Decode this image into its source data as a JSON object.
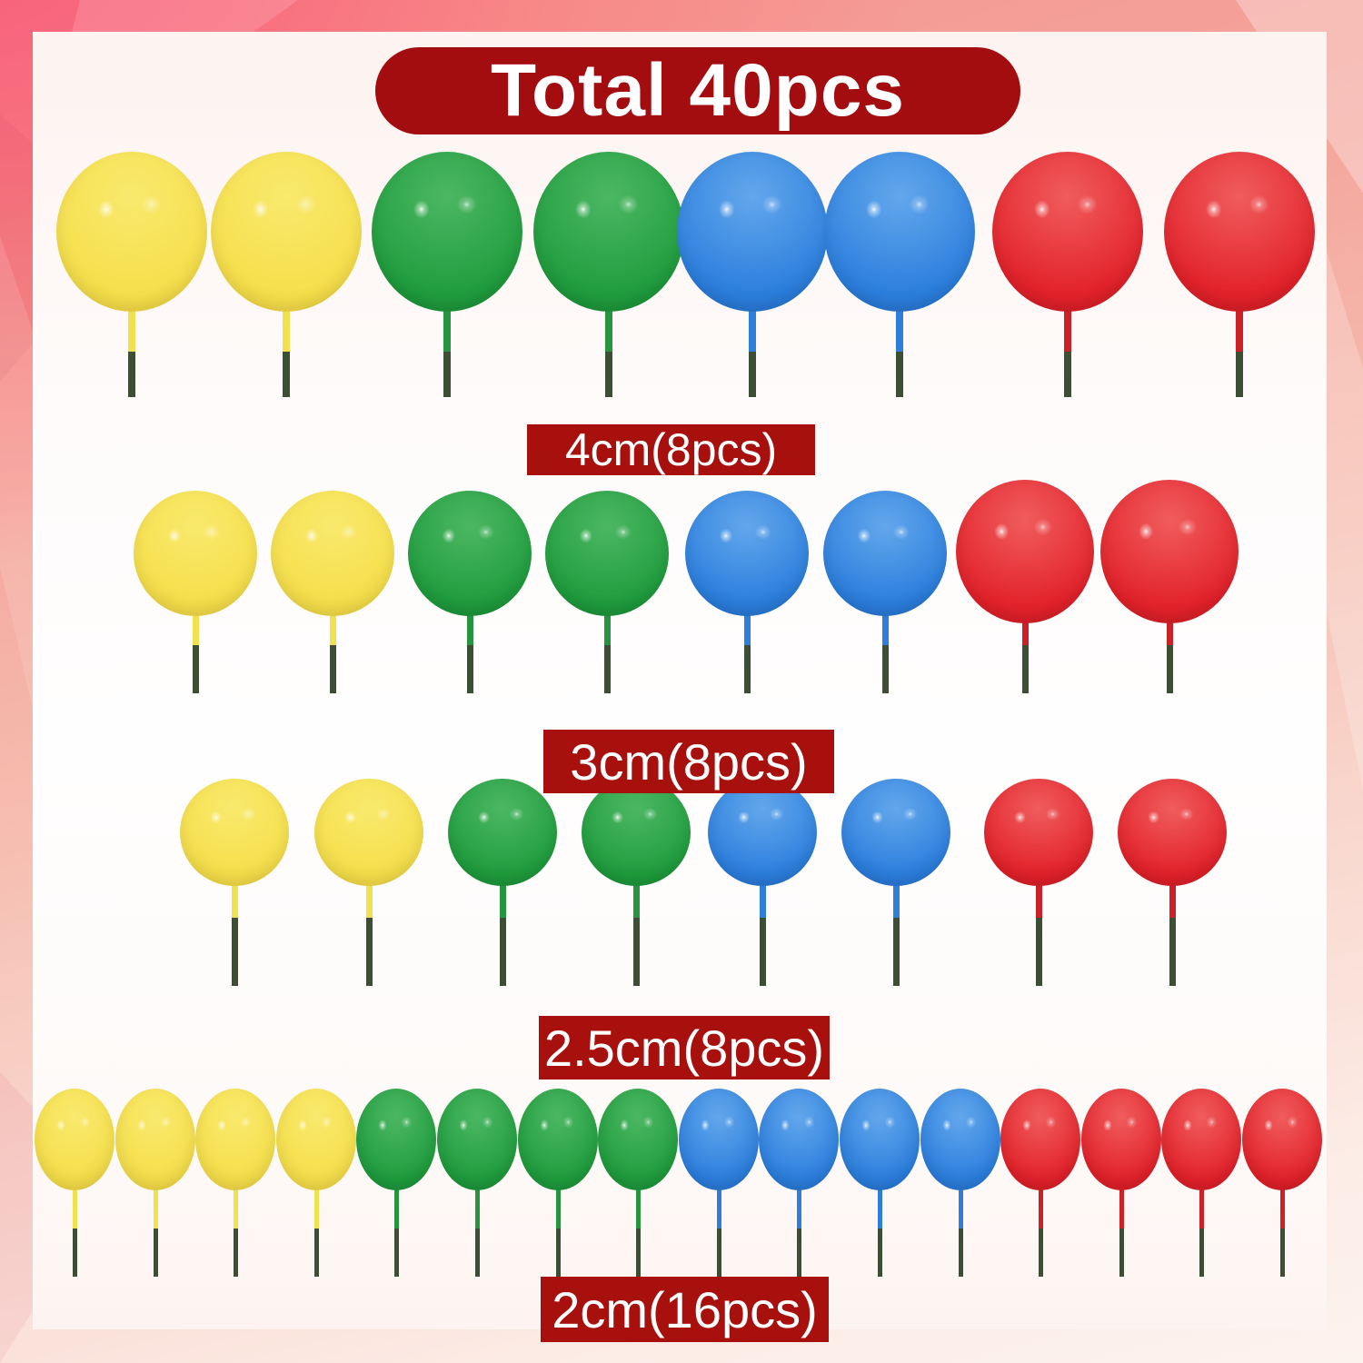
{
  "banner": {
    "label": "Total 40pcs"
  },
  "rows": [
    {
      "label": "4cm(8pcs)",
      "size": "4cm",
      "count": 8,
      "balls": [
        "yellow",
        "yellow",
        "green",
        "green",
        "blue",
        "blue",
        "red",
        "red"
      ]
    },
    {
      "label": "3cm(8pcs)",
      "size": "3cm",
      "count": 8,
      "balls": [
        "yellow",
        "yellow",
        "green",
        "green",
        "blue",
        "blue",
        "red",
        "red"
      ]
    },
    {
      "label": "2.5cm(8pcs)",
      "size": "2.5cm",
      "count": 8,
      "balls": [
        "yellow",
        "yellow",
        "green",
        "green",
        "blue",
        "blue",
        "red",
        "red"
      ]
    },
    {
      "label": "2cm(16pcs)",
      "size": "2cm",
      "count": 16,
      "balls": [
        "yellow",
        "yellow",
        "yellow",
        "yellow",
        "green",
        "green",
        "green",
        "green",
        "blue",
        "blue",
        "blue",
        "blue",
        "red",
        "red",
        "red",
        "red"
      ]
    }
  ],
  "total_pieces": 40,
  "colors": {
    "banner_bg": "#A40D10",
    "label_bg": "#A8100E",
    "label_text": "#FFFFFF",
    "stick_dark": "#3C4E33",
    "palette": {
      "yellow": {
        "main": "#F6DF4B",
        "light": "#F9E96D",
        "dark": "#E6C433",
        "stick": "#F2E14E"
      },
      "green": {
        "main": "#1F9C3D",
        "light": "#4CB763",
        "dark": "#147A2C",
        "stick": "#27943F"
      },
      "blue": {
        "main": "#2B7EDD",
        "light": "#63A7EC",
        "dark": "#1D5FB6",
        "stick": "#2E7EDB"
      },
      "red": {
        "main": "#E2212A",
        "light": "#F05C5C",
        "dark": "#B8131A",
        "stick": "#CC2127"
      }
    }
  }
}
